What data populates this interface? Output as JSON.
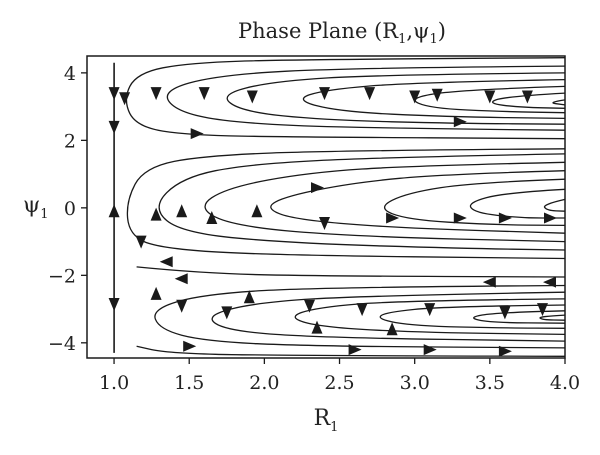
{
  "chart_data": {
    "type": "streamplot",
    "title": {
      "text": "Phase Plane (R",
      "sub1": "1",
      "mid": ",ψ",
      "sub2": "1",
      "end": ")"
    },
    "xlabel": {
      "text": "R",
      "sub": "1"
    },
    "ylabel": {
      "text": "ψ",
      "sub": "1"
    },
    "xlim": [
      0.82,
      4.0
    ],
    "ylim": [
      -4.45,
      4.5
    ],
    "xticks": [
      {
        "value": 1.0,
        "label": "1.0"
      },
      {
        "value": 1.5,
        "label": "1.5"
      },
      {
        "value": 2.0,
        "label": "2.0"
      },
      {
        "value": 2.5,
        "label": "2.5"
      },
      {
        "value": 3.0,
        "label": "3.0"
      },
      {
        "value": 3.5,
        "label": "3.5"
      },
      {
        "value": 4.0,
        "label": "4.0"
      }
    ],
    "yticks": [
      {
        "value": 4,
        "label": "4"
      },
      {
        "value": 2,
        "label": "2"
      },
      {
        "value": 0,
        "label": "0"
      },
      {
        "value": -2,
        "label": "−2"
      },
      {
        "value": -4,
        "label": "−4"
      }
    ],
    "grid": false,
    "line_color": "#1a1a1a",
    "streamlines": [
      {
        "points": [
          [
            1.0,
            -4.3
          ],
          [
            1.0,
            4.3
          ]
        ]
      },
      {
        "points": [
          [
            4.0,
            4.45
          ],
          [
            2.2,
            4.4
          ],
          [
            1.5,
            4.3
          ],
          [
            1.15,
            4.0
          ],
          [
            1.06,
            3.2
          ],
          [
            1.15,
            2.4
          ],
          [
            1.5,
            2.15
          ],
          [
            2.2,
            2.1
          ],
          [
            4.0,
            2.05
          ]
        ]
      },
      {
        "points": [
          [
            4.0,
            4.2
          ],
          [
            2.6,
            4.15
          ],
          [
            1.7,
            3.95
          ],
          [
            1.3,
            3.45
          ],
          [
            1.45,
            2.75
          ],
          [
            2.0,
            2.45
          ],
          [
            3.0,
            2.35
          ],
          [
            4.0,
            2.3
          ]
        ]
      },
      {
        "points": [
          [
            4.0,
            4.0
          ],
          [
            2.8,
            3.95
          ],
          [
            2.05,
            3.75
          ],
          [
            1.7,
            3.35
          ],
          [
            1.85,
            2.85
          ],
          [
            2.4,
            2.6
          ],
          [
            3.3,
            2.5
          ],
          [
            4.0,
            2.48
          ]
        ]
      },
      {
        "points": [
          [
            4.0,
            3.8
          ],
          [
            3.0,
            3.72
          ],
          [
            2.4,
            3.5
          ],
          [
            2.2,
            3.2
          ],
          [
            2.5,
            2.85
          ],
          [
            3.2,
            2.7
          ],
          [
            4.0,
            2.65
          ]
        ]
      },
      {
        "points": [
          [
            4.0,
            3.6
          ],
          [
            3.3,
            3.5
          ],
          [
            2.95,
            3.25
          ],
          [
            3.1,
            2.95
          ],
          [
            3.6,
            2.85
          ],
          [
            4.0,
            2.82
          ]
        ]
      },
      {
        "points": [
          [
            4.0,
            3.4
          ],
          [
            3.6,
            3.3
          ],
          [
            3.48,
            3.1
          ],
          [
            3.7,
            2.98
          ],
          [
            4.0,
            2.95
          ]
        ]
      },
      {
        "points": [
          [
            4.0,
            3.2
          ],
          [
            3.88,
            3.12
          ],
          [
            4.0,
            3.05
          ]
        ]
      },
      {
        "points": [
          [
            4.0,
            1.75
          ],
          [
            2.5,
            1.7
          ],
          [
            1.6,
            1.55
          ],
          [
            1.2,
            1.2
          ],
          [
            1.08,
            0.2
          ],
          [
            1.1,
            -0.8
          ],
          [
            1.3,
            -1.2
          ],
          [
            2.0,
            -1.4
          ],
          [
            4.0,
            -1.5
          ]
        ]
      },
      {
        "points": [
          [
            4.0,
            1.6
          ],
          [
            2.8,
            1.5
          ],
          [
            1.9,
            1.3
          ],
          [
            1.45,
            0.9
          ],
          [
            1.25,
            0.0
          ],
          [
            1.45,
            -0.75
          ],
          [
            2.2,
            -1.05
          ],
          [
            3.3,
            -1.2
          ],
          [
            4.0,
            -1.25
          ]
        ]
      },
      {
        "points": [
          [
            4.0,
            1.35
          ],
          [
            3.0,
            1.25
          ],
          [
            2.3,
            1.05
          ],
          [
            1.75,
            0.6
          ],
          [
            1.55,
            0.0
          ],
          [
            1.8,
            -0.55
          ],
          [
            2.6,
            -0.85
          ],
          [
            4.0,
            -1.0
          ]
        ]
      },
      {
        "points": [
          [
            4.0,
            1.1
          ],
          [
            3.2,
            1.0
          ],
          [
            2.6,
            0.75
          ],
          [
            2.15,
            0.35
          ],
          [
            2.0,
            0.0
          ],
          [
            2.2,
            -0.35
          ],
          [
            2.9,
            -0.6
          ],
          [
            4.0,
            -0.75
          ]
        ]
      },
      {
        "points": [
          [
            4.0,
            0.85
          ],
          [
            3.4,
            0.75
          ],
          [
            2.95,
            0.45
          ],
          [
            2.75,
            0.0
          ],
          [
            2.95,
            -0.35
          ],
          [
            3.5,
            -0.5
          ],
          [
            4.0,
            -0.52
          ]
        ]
      },
      {
        "points": [
          [
            4.0,
            0.55
          ],
          [
            3.6,
            0.45
          ],
          [
            3.35,
            0.15
          ],
          [
            3.4,
            -0.15
          ],
          [
            3.7,
            -0.3
          ],
          [
            4.0,
            -0.3
          ]
        ]
      },
      {
        "points": [
          [
            4.0,
            0.25
          ],
          [
            3.85,
            0.1
          ],
          [
            3.88,
            -0.08
          ],
          [
            4.0,
            -0.1
          ]
        ]
      },
      {
        "points": [
          [
            1.15,
            -1.75
          ],
          [
            1.6,
            -1.95
          ],
          [
            2.4,
            -2.02
          ],
          [
            4.0,
            -2.05
          ]
        ]
      },
      {
        "points": [
          [
            4.0,
            -2.3
          ],
          [
            2.4,
            -2.35
          ],
          [
            1.6,
            -2.55
          ],
          [
            1.25,
            -3.0
          ],
          [
            1.3,
            -3.6
          ],
          [
            1.6,
            -3.95
          ],
          [
            2.3,
            -4.1
          ],
          [
            4.0,
            -4.15
          ]
        ]
      },
      {
        "points": [
          [
            4.0,
            -2.5
          ],
          [
            2.7,
            -2.6
          ],
          [
            1.95,
            -2.8
          ],
          [
            1.6,
            -3.2
          ],
          [
            1.75,
            -3.65
          ],
          [
            2.4,
            -3.85
          ],
          [
            4.0,
            -3.95
          ]
        ]
      },
      {
        "points": [
          [
            4.0,
            -2.7
          ],
          [
            2.9,
            -2.75
          ],
          [
            2.35,
            -2.95
          ],
          [
            2.15,
            -3.25
          ],
          [
            2.4,
            -3.55
          ],
          [
            3.1,
            -3.7
          ],
          [
            4.0,
            -3.75
          ]
        ]
      },
      {
        "points": [
          [
            4.0,
            -2.88
          ],
          [
            3.2,
            -2.92
          ],
          [
            2.8,
            -3.1
          ],
          [
            2.75,
            -3.3
          ],
          [
            3.0,
            -3.5
          ],
          [
            3.6,
            -3.56
          ],
          [
            4.0,
            -3.57
          ]
        ]
      },
      {
        "points": [
          [
            4.0,
            -3.05
          ],
          [
            3.55,
            -3.1
          ],
          [
            3.35,
            -3.25
          ],
          [
            3.5,
            -3.4
          ],
          [
            4.0,
            -3.42
          ]
        ]
      },
      {
        "points": [
          [
            4.0,
            -3.18
          ],
          [
            3.82,
            -3.22
          ],
          [
            3.85,
            -3.32
          ],
          [
            4.0,
            -3.33
          ]
        ]
      },
      {
        "points": [
          [
            4.0,
            -4.4
          ],
          [
            2.0,
            -4.38
          ],
          [
            1.35,
            -4.3
          ],
          [
            1.15,
            -4.1
          ]
        ]
      }
    ],
    "arrows": [
      {
        "x": 1.0,
        "y": 3.4,
        "dir": "down"
      },
      {
        "x": 1.0,
        "y": 2.4,
        "dir": "down"
      },
      {
        "x": 1.0,
        "y": -0.1,
        "dir": "up"
      },
      {
        "x": 1.0,
        "y": -2.85,
        "dir": "down"
      },
      {
        "x": 1.07,
        "y": 3.25,
        "dir": "down"
      },
      {
        "x": 1.55,
        "y": 2.2,
        "dir": "right"
      },
      {
        "x": 1.28,
        "y": 3.4,
        "dir": "down"
      },
      {
        "x": 1.6,
        "y": 3.4,
        "dir": "down"
      },
      {
        "x": 1.92,
        "y": 3.3,
        "dir": "down"
      },
      {
        "x": 2.4,
        "y": 3.4,
        "dir": "down"
      },
      {
        "x": 2.7,
        "y": 3.4,
        "dir": "down"
      },
      {
        "x": 3.0,
        "y": 3.3,
        "dir": "down"
      },
      {
        "x": 3.15,
        "y": 3.35,
        "dir": "down"
      },
      {
        "x": 3.5,
        "y": 3.3,
        "dir": "down"
      },
      {
        "x": 3.75,
        "y": 3.3,
        "dir": "down"
      },
      {
        "x": 3.3,
        "y": 2.55,
        "dir": "right"
      },
      {
        "x": 1.18,
        "y": -1.0,
        "dir": "down"
      },
      {
        "x": 1.28,
        "y": -0.2,
        "dir": "up"
      },
      {
        "x": 1.45,
        "y": -0.1,
        "dir": "up"
      },
      {
        "x": 1.65,
        "y": -0.3,
        "dir": "up"
      },
      {
        "x": 1.95,
        "y": -0.1,
        "dir": "up"
      },
      {
        "x": 2.4,
        "y": -0.45,
        "dir": "down"
      },
      {
        "x": 2.85,
        "y": -0.3,
        "dir": "right"
      },
      {
        "x": 2.35,
        "y": 0.6,
        "dir": "right"
      },
      {
        "x": 3.3,
        "y": -0.3,
        "dir": "right"
      },
      {
        "x": 3.6,
        "y": -0.3,
        "dir": "right"
      },
      {
        "x": 3.9,
        "y": -0.3,
        "dir": "right"
      },
      {
        "x": 1.35,
        "y": -1.6,
        "dir": "left"
      },
      {
        "x": 1.45,
        "y": -2.1,
        "dir": "left"
      },
      {
        "x": 3.5,
        "y": -2.2,
        "dir": "left"
      },
      {
        "x": 3.9,
        "y": -2.2,
        "dir": "left"
      },
      {
        "x": 1.45,
        "y": -2.9,
        "dir": "down"
      },
      {
        "x": 1.75,
        "y": -3.1,
        "dir": "down"
      },
      {
        "x": 2.3,
        "y": -2.9,
        "dir": "down"
      },
      {
        "x": 2.65,
        "y": -3.0,
        "dir": "down"
      },
      {
        "x": 3.1,
        "y": -3.0,
        "dir": "down"
      },
      {
        "x": 3.6,
        "y": -3.1,
        "dir": "down"
      },
      {
        "x": 3.85,
        "y": -3.0,
        "dir": "down"
      },
      {
        "x": 1.28,
        "y": -2.55,
        "dir": "up"
      },
      {
        "x": 1.9,
        "y": -2.65,
        "dir": "up"
      },
      {
        "x": 2.35,
        "y": -3.55,
        "dir": "up"
      },
      {
        "x": 2.85,
        "y": -3.6,
        "dir": "up"
      },
      {
        "x": 1.5,
        "y": -4.1,
        "dir": "right"
      },
      {
        "x": 2.6,
        "y": -4.2,
        "dir": "right"
      },
      {
        "x": 3.1,
        "y": -4.2,
        "dir": "right"
      },
      {
        "x": 3.6,
        "y": -4.25,
        "dir": "right"
      }
    ]
  }
}
